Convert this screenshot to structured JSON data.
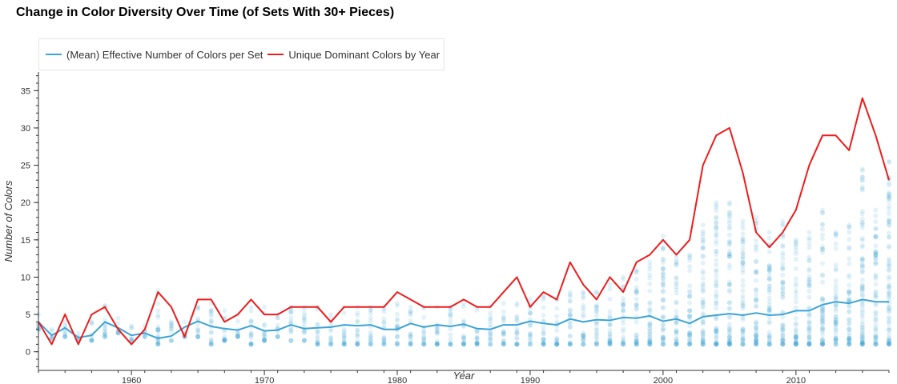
{
  "chart_data": {
    "type": "line",
    "title": "Change in Color Diversity Over Time (of Sets With 30+ Pieces)",
    "xlabel": "Year",
    "ylabel": "Number of Colors",
    "xlim": [
      1953,
      2017
    ],
    "ylim": [
      -2.5,
      37.5
    ],
    "x_ticks": [
      1960,
      1970,
      1980,
      1990,
      2000,
      2010
    ],
    "y_ticks": [
      0,
      5,
      10,
      15,
      20,
      25,
      30,
      35
    ],
    "legend_position": "top-left",
    "grid": false,
    "series": [
      {
        "name": "(Mean) Effective Number of Colors per Set",
        "color": "#3ca3d6",
        "x": [
          1953,
          1954,
          1955,
          1956,
          1957,
          1958,
          1959,
          1960,
          1961,
          1962,
          1963,
          1964,
          1965,
          1966,
          1967,
          1968,
          1969,
          1970,
          1971,
          1972,
          1973,
          1974,
          1975,
          1976,
          1977,
          1978,
          1979,
          1980,
          1981,
          1982,
          1983,
          1984,
          1985,
          1986,
          1987,
          1988,
          1989,
          1990,
          1991,
          1992,
          1993,
          1994,
          1995,
          1996,
          1997,
          1998,
          1999,
          2000,
          2001,
          2002,
          2003,
          2004,
          2005,
          2006,
          2007,
          2008,
          2009,
          2010,
          2011,
          2012,
          2013,
          2014,
          2015,
          2016,
          2017
        ],
        "y": [
          4,
          2.2,
          3.2,
          1.9,
          2.2,
          4,
          3.2,
          2.2,
          2.5,
          1.8,
          2.1,
          3.3,
          4.1,
          3.4,
          3.1,
          2.9,
          3.5,
          2.8,
          2.9,
          3.6,
          3.1,
          3.2,
          3.3,
          3.6,
          3.5,
          3.6,
          3,
          3,
          3.8,
          3.3,
          3.6,
          3.4,
          3.7,
          3.1,
          3,
          3.6,
          3.6,
          4.1,
          3.8,
          3.6,
          4.4,
          4,
          4.3,
          4.2,
          4.6,
          4.5,
          4.8,
          4.1,
          4.4,
          3.8,
          4.7,
          4.9,
          5.1,
          4.9,
          5.2,
          4.9,
          5,
          5.5,
          5.5,
          6.3,
          6.7,
          6.5,
          7,
          6.7,
          6.7
        ]
      },
      {
        "name": "Unique Dominant Colors by Year",
        "color": "#ee1c1c",
        "x": [
          1953,
          1954,
          1955,
          1956,
          1957,
          1958,
          1959,
          1960,
          1961,
          1962,
          1963,
          1964,
          1965,
          1966,
          1967,
          1968,
          1969,
          1970,
          1971,
          1972,
          1973,
          1974,
          1975,
          1976,
          1977,
          1978,
          1979,
          1980,
          1981,
          1982,
          1983,
          1984,
          1985,
          1986,
          1987,
          1988,
          1989,
          1990,
          1991,
          1992,
          1993,
          1994,
          1995,
          1996,
          1997,
          1998,
          1999,
          2000,
          2001,
          2002,
          2003,
          2004,
          2005,
          2006,
          2007,
          2008,
          2009,
          2010,
          2011,
          2012,
          2013,
          2014,
          2015,
          2016,
          2017
        ],
        "y": [
          4,
          1,
          5,
          1,
          5,
          6,
          3,
          1,
          3,
          8,
          6,
          2,
          7,
          7,
          4,
          5,
          7,
          5,
          5,
          6,
          6,
          6,
          4,
          6,
          6,
          6,
          6,
          8,
          7,
          6,
          6,
          6,
          7,
          6,
          6,
          8,
          10,
          6,
          8,
          7,
          12,
          9,
          7,
          10,
          8,
          12,
          13,
          15,
          13,
          15,
          25,
          29,
          30,
          24,
          16,
          14,
          16,
          19,
          25,
          29,
          29,
          27,
          34,
          29,
          23
        ]
      }
    ],
    "scatter": {
      "color": "#3ca3d6",
      "x": [
        1953,
        1954,
        1955,
        1956,
        1957,
        1958,
        1959,
        1960,
        1961,
        1962,
        1963,
        1964,
        1965,
        1966,
        1967,
        1968,
        1969,
        1970,
        1971,
        1972,
        1973,
        1974,
        1975,
        1976,
        1977,
        1978,
        1979,
        1980,
        1981,
        1982,
        1983,
        1984,
        1985,
        1986,
        1987,
        1988,
        1989,
        1990,
        1991,
        1992,
        1993,
        1994,
        1995,
        1996,
        1997,
        1998,
        1999,
        2000,
        2001,
        2002,
        2003,
        2004,
        2005,
        2006,
        2007,
        2008,
        2009,
        2010,
        2011,
        2012,
        2013,
        2014,
        2015,
        2016,
        2017
      ],
      "min": [
        3,
        1.8,
        2,
        1.5,
        1.5,
        2,
        2.5,
        1.5,
        2,
        1,
        1.5,
        2,
        2,
        1,
        1.5,
        2,
        1,
        1.5,
        2,
        1.5,
        1.5,
        1,
        1,
        1,
        1,
        1,
        1,
        1,
        1,
        1,
        1,
        1,
        1,
        1,
        1,
        1,
        1,
        1,
        1,
        1,
        1,
        1,
        1,
        1,
        1,
        1,
        1,
        1,
        1,
        1,
        1,
        1,
        1,
        1,
        1,
        1,
        1,
        1,
        1,
        1,
        1,
        1,
        1,
        1,
        1
      ],
      "max": [
        5,
        3,
        5,
        2.5,
        4,
        6.2,
        4.5,
        3.5,
        3.5,
        8.2,
        4,
        4,
        6,
        6.5,
        5.5,
        5,
        6,
        6,
        5,
        6,
        6,
        6,
        5,
        6,
        6,
        6,
        6,
        6.5,
        6,
        6,
        6,
        6,
        6.5,
        6,
        6,
        6.5,
        6.5,
        7,
        7.5,
        7,
        8,
        8,
        8,
        9,
        10,
        11,
        12,
        15.5,
        13,
        13,
        17,
        20,
        20,
        17.5,
        18,
        16,
        17.5,
        15,
        16,
        19,
        16,
        17,
        24.5,
        19,
        25.5
      ]
    }
  }
}
